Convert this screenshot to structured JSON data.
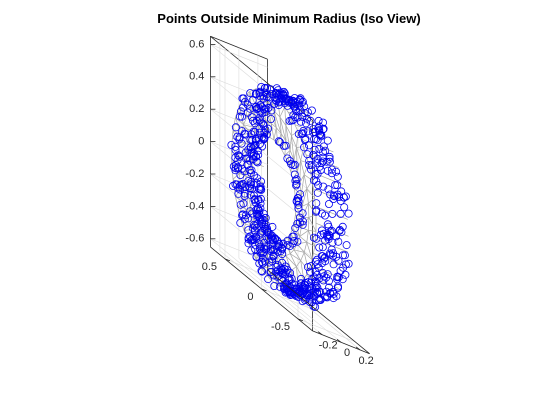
{
  "chart_data": {
    "type": "scatter",
    "title": "Points Outside Minimum Radius (Iso View)",
    "xlabel": "",
    "ylabel": "",
    "zlabel": "",
    "view": "isometric",
    "grid": true,
    "x_ticks": [
      "-0.2",
      "0",
      "0.2"
    ],
    "y_ticks": [
      "-0.5",
      "0",
      "0.5"
    ],
    "z_ticks": [
      "-0.6",
      "-0.4",
      "-0.2",
      "0",
      "0.2",
      "0.4",
      "0.6"
    ],
    "xlim": [
      -0.3,
      0.3
    ],
    "ylim": [
      -0.7,
      0.7
    ],
    "zlim": [
      -0.65,
      0.65
    ],
    "surface": "triangulated ring mesh (gray), outer radius ~0.58, inner radius ~0.3",
    "series": [
      {
        "marker": "circle",
        "description": "points on outer rim of ring",
        "count_estimate": 600
      }
    ]
  },
  "colors": {
    "markers": "#0000ee",
    "mesh": "#a6a6a6",
    "grid": "#dcdcdc",
    "axes": "#262626"
  }
}
